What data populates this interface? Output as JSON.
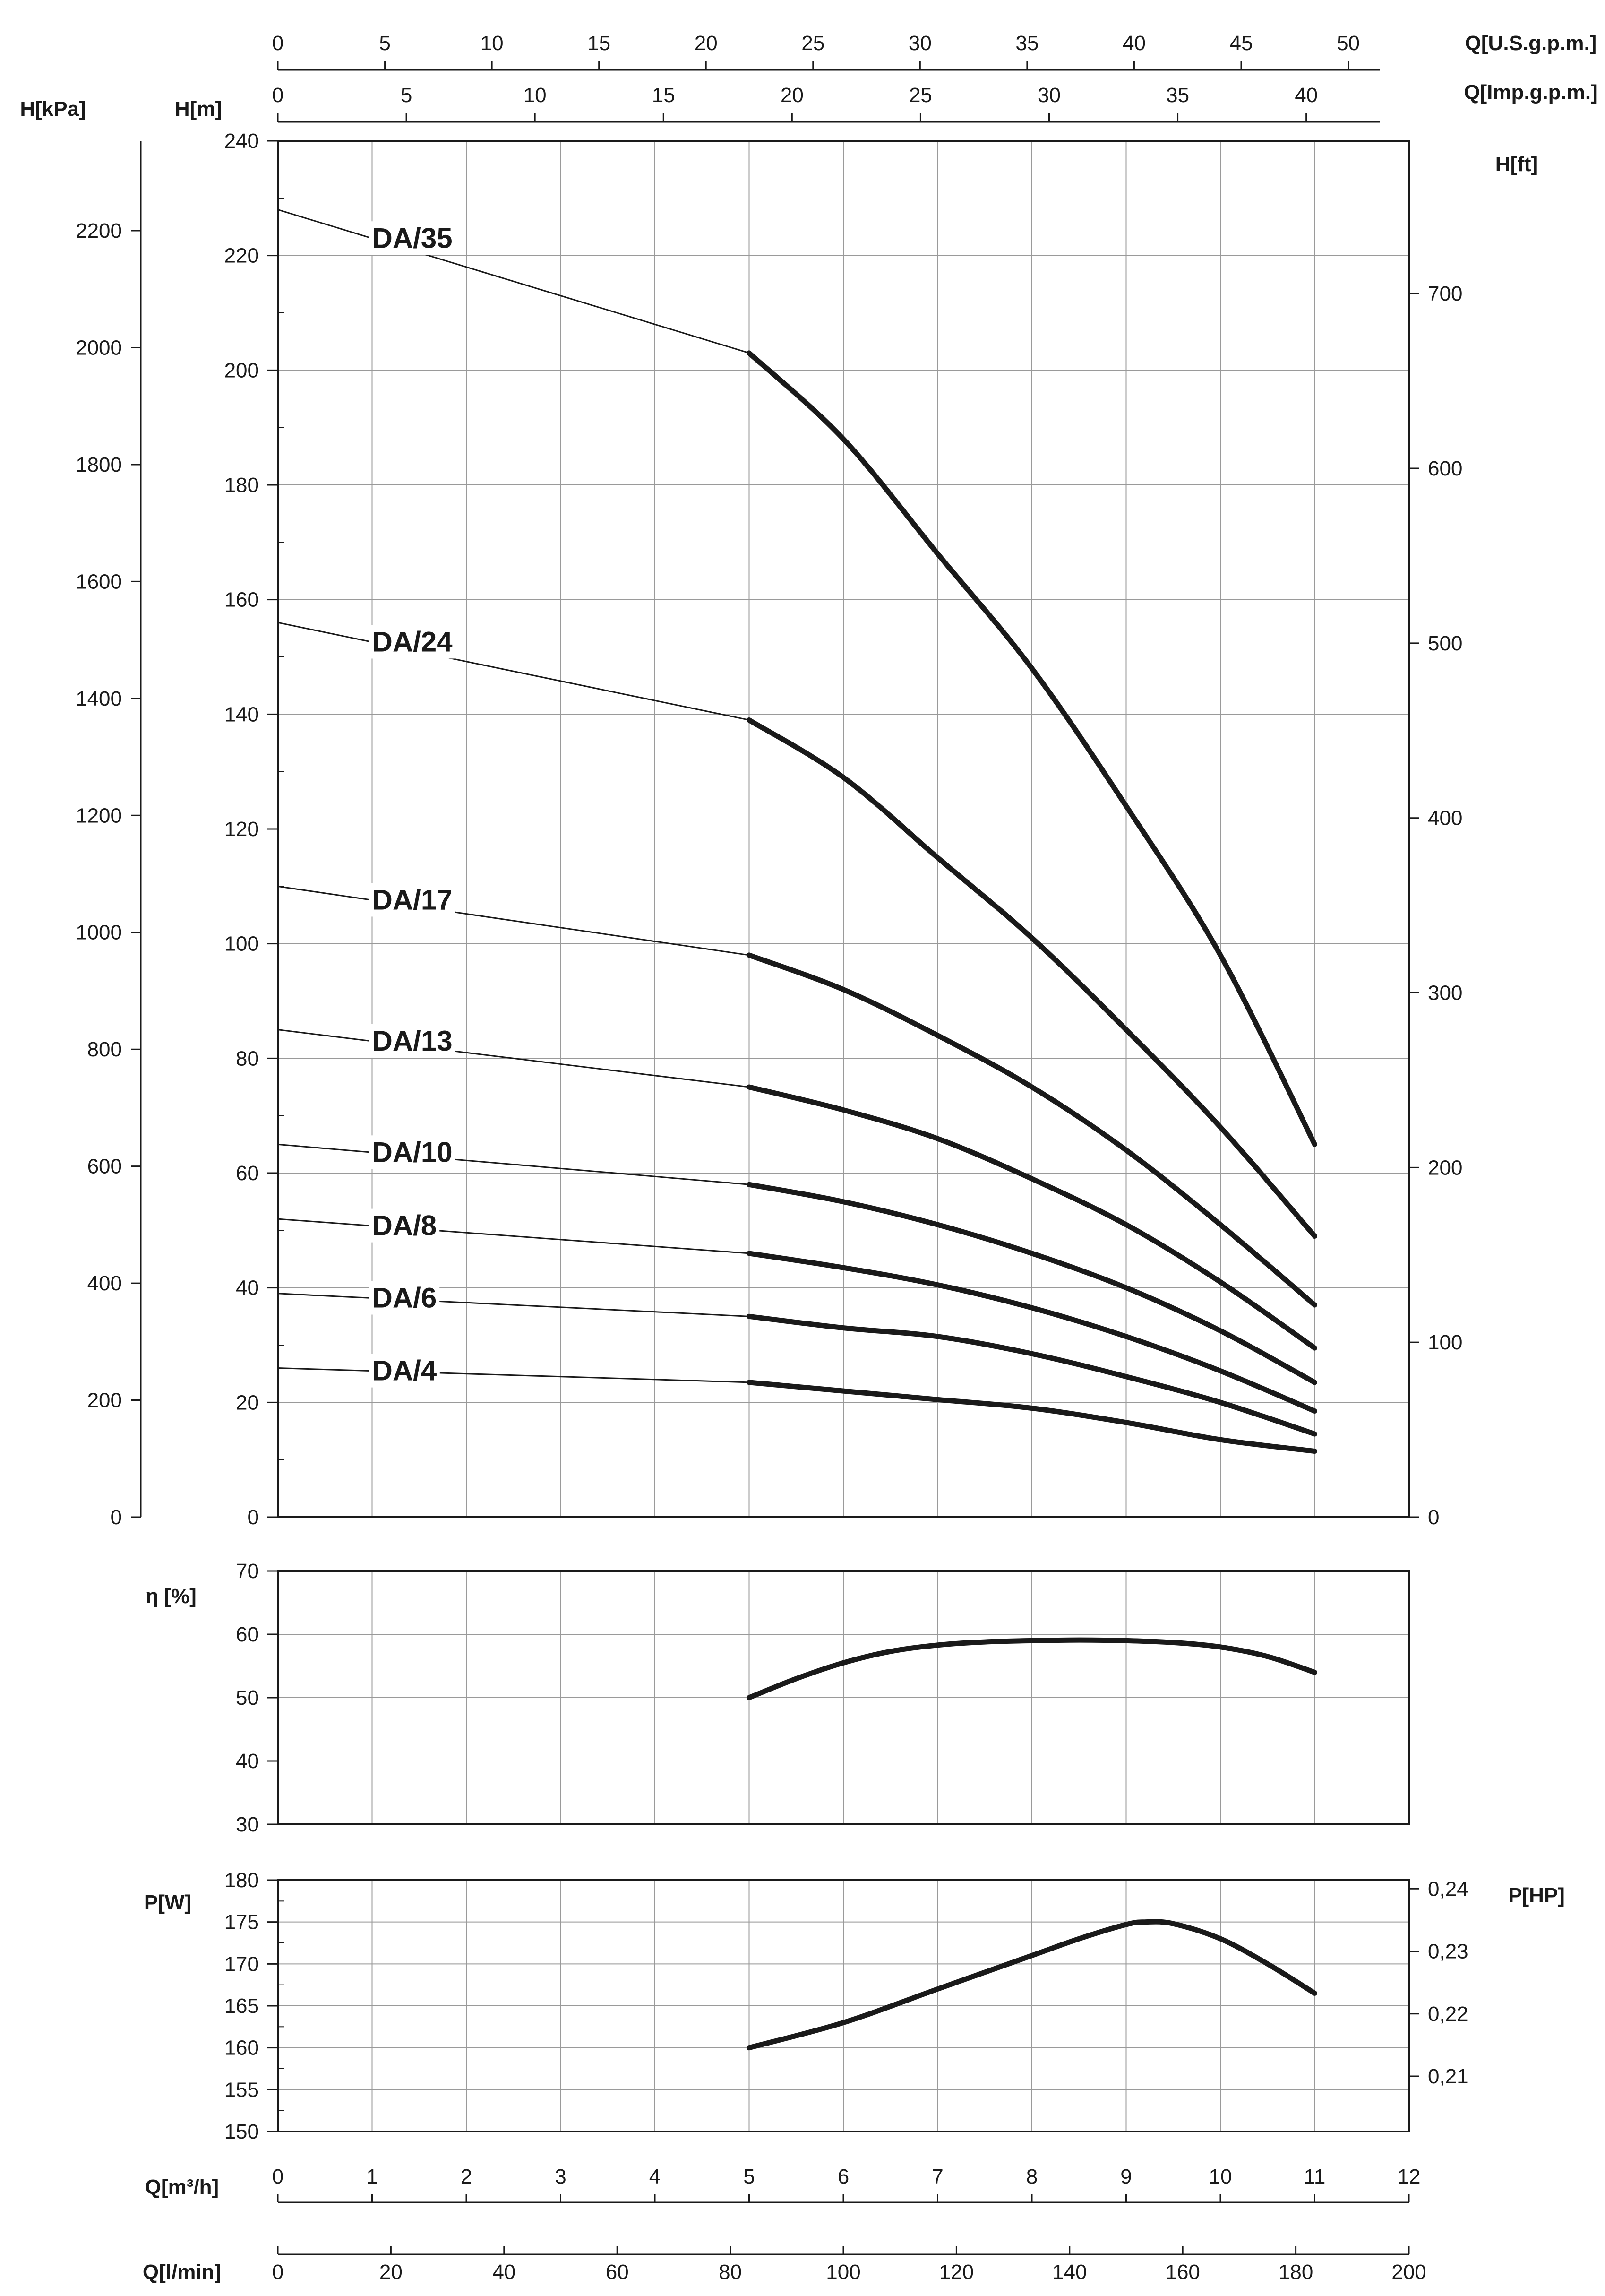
{
  "chart_data": [
    {
      "type": "line",
      "id": "head",
      "ylabel_left_primary": "H[m]",
      "ylabel_left_secondary": "H[kPa]",
      "ylabel_right": "H[ft]",
      "xlabel_top_1": "Q[U.S.g.p.m.]",
      "xlabel_top_2": "Q[Imp.g.p.m.]",
      "xlim": [
        0,
        12
      ],
      "ylim": [
        0,
        240
      ],
      "grid": true,
      "y_ticks_m": [
        0,
        20,
        40,
        60,
        80,
        100,
        120,
        140,
        160,
        180,
        200,
        220,
        240
      ],
      "y_ticks_kpa": [
        0,
        200,
        400,
        600,
        800,
        1000,
        1200,
        1400,
        1600,
        1800,
        2000,
        2200
      ],
      "y_ticks_ft": [
        0,
        100,
        200,
        300,
        400,
        500,
        600,
        700
      ],
      "x_ticks_usgpm": [
        0,
        5,
        10,
        15,
        20,
        25,
        30,
        35,
        40,
        45,
        50
      ],
      "x_ticks_impgpm": [
        0,
        5,
        10,
        15,
        20,
        25,
        30,
        35,
        40
      ],
      "series": [
        {
          "name": "DA/35",
          "x": [
            0,
            5,
            6,
            7,
            8,
            9,
            10,
            11
          ],
          "y": [
            228,
            203,
            188,
            168,
            148,
            124,
            98,
            65
          ]
        },
        {
          "name": "DA/24",
          "x": [
            0,
            5,
            6,
            7,
            8,
            9,
            10,
            11
          ],
          "y": [
            156,
            139,
            129,
            115,
            101,
            85,
            68,
            49
          ]
        },
        {
          "name": "DA/17",
          "x": [
            0,
            5,
            6,
            7,
            8,
            9,
            10,
            11
          ],
          "y": [
            110,
            98,
            92,
            84,
            75,
            64,
            51,
            37
          ]
        },
        {
          "name": "DA/13",
          "x": [
            0,
            5,
            6,
            7,
            8,
            9,
            10,
            11
          ],
          "y": [
            85,
            75,
            71,
            66,
            59,
            51,
            41,
            29.5
          ]
        },
        {
          "name": "DA/10",
          "x": [
            0,
            5,
            6,
            7,
            8,
            9,
            10,
            11
          ],
          "y": [
            65,
            58,
            55,
            51,
            46,
            40,
            32.5,
            23.5
          ]
        },
        {
          "name": "DA/8",
          "x": [
            0,
            5,
            6,
            7,
            8,
            9,
            10,
            11
          ],
          "y": [
            52,
            46,
            43.5,
            40.5,
            36.5,
            31.5,
            25.5,
            18.5
          ]
        },
        {
          "name": "DA/6",
          "x": [
            0,
            5,
            6,
            7,
            8,
            9,
            10,
            11
          ],
          "y": [
            39,
            35,
            33,
            31.5,
            28.5,
            24.5,
            20,
            14.5
          ]
        },
        {
          "name": "DA/4",
          "x": [
            0,
            5,
            6,
            7,
            8,
            9,
            10,
            11
          ],
          "y": [
            26,
            23.5,
            22,
            20.5,
            19,
            16.5,
            13.5,
            11.5
          ]
        }
      ]
    },
    {
      "type": "line",
      "id": "efficiency",
      "ylabel": "η [%]",
      "xlim": [
        0,
        12
      ],
      "ylim": [
        30,
        70
      ],
      "grid": true,
      "y_ticks": [
        30,
        40,
        50,
        60,
        70
      ],
      "series": [
        {
          "x": [
            5,
            5.5,
            6,
            6.5,
            7,
            7.5,
            8,
            8.5,
            9,
            9.5,
            10,
            10.5,
            11
          ],
          "y": [
            50,
            53,
            55.5,
            57.3,
            58.3,
            58.8,
            59,
            59.1,
            59,
            58.7,
            58,
            56.5,
            54
          ]
        }
      ]
    },
    {
      "type": "line",
      "id": "power",
      "ylabel_left": "P[W]",
      "ylabel_right": "P[HP]",
      "xlabel_bottom_1": "Q[m³/h]",
      "xlabel_bottom_2": "Q[l/min]",
      "xlim": [
        0,
        12
      ],
      "ylim": [
        150,
        180
      ],
      "grid": true,
      "y_ticks_w": [
        150,
        155,
        160,
        165,
        170,
        175,
        180
      ],
      "y_ticks_hp": [
        "0,21",
        "0,22",
        "0,23",
        "0,24"
      ],
      "x_ticks_m3h": [
        0,
        1,
        2,
        3,
        4,
        5,
        6,
        7,
        8,
        9,
        10,
        11,
        12
      ],
      "x_ticks_lmin": [
        0,
        20,
        40,
        60,
        80,
        100,
        120,
        140,
        160,
        180,
        200
      ],
      "series": [
        {
          "x": [
            5,
            6,
            7,
            8,
            8.5,
            9,
            9.2,
            9.5,
            10,
            10.5,
            11
          ],
          "y": [
            160,
            163,
            167,
            171,
            173,
            174.7,
            175,
            174.8,
            173,
            170,
            166.5
          ]
        }
      ]
    }
  ]
}
